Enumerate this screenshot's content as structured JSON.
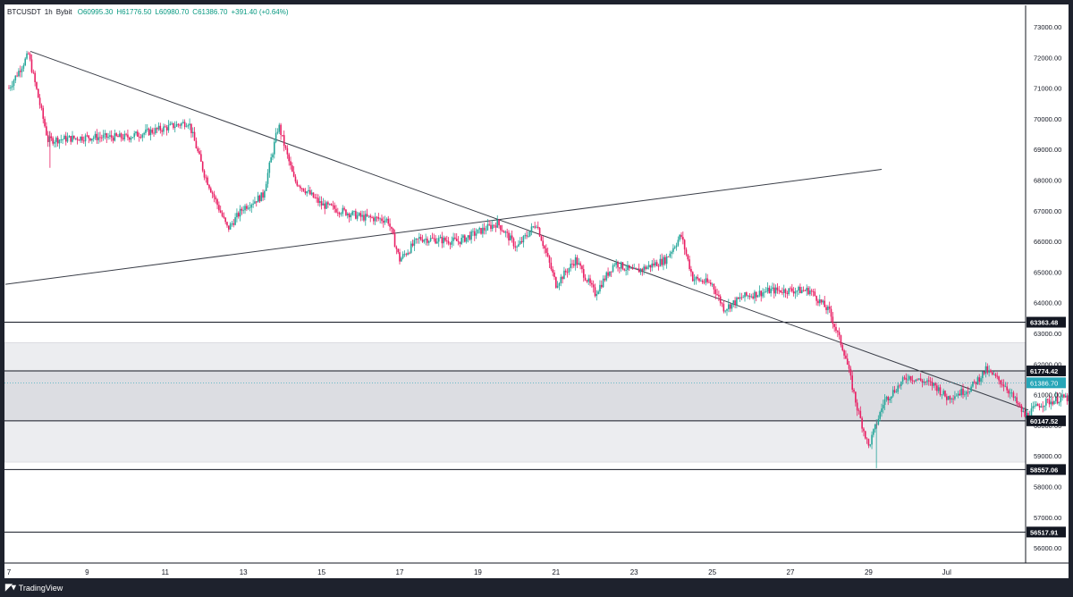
{
  "header": {
    "symbol": "BTCUSDT",
    "interval": "1h",
    "exchange": "Bybit",
    "open": "O60995.30",
    "high": "H61776.50",
    "low": "L60980.70",
    "close": "C61386.70",
    "change": "+391.40 (+0.64%)"
  },
  "footer": {
    "brand": "TradingView"
  },
  "colors": {
    "up": "#26a69a",
    "down": "#e91e63",
    "line": "#131722",
    "zone_light": "#ecedf0",
    "zone_dark": "#dcdde2",
    "price_tag": "#26a6b8"
  },
  "chart_data": {
    "type": "candlestick",
    "yaxis": {
      "min": 55500,
      "max": 73500,
      "ticks": [
        "73000.00",
        "72000.00",
        "71000.00",
        "70000.00",
        "69000.00",
        "68000.00",
        "67000.00",
        "66000.00",
        "65000.00",
        "64000.00",
        "63000.00",
        "62000.00",
        "61000.00",
        "60000.00",
        "59000.00",
        "58000.00",
        "57000.00",
        "56000.00"
      ]
    },
    "xaxis": {
      "ticks": [
        "7",
        "9",
        "11",
        "13",
        "15",
        "17",
        "19",
        "21",
        "23",
        "25",
        "27",
        "29",
        "Jul"
      ]
    },
    "level_labels": [
      {
        "value": 63363.48,
        "label": "63363.48"
      },
      {
        "value": 61774.42,
        "label": "61774.42"
      },
      {
        "value": 60147.52,
        "label": "60147.52"
      },
      {
        "value": 58557.06,
        "label": "58557.06"
      },
      {
        "value": 56517.91,
        "label": "56517.91"
      }
    ],
    "last_price": {
      "value": 61386.7,
      "label": "61386.70"
    },
    "zones": [
      {
        "from": 58800,
        "to": 62700,
        "shade": "light"
      },
      {
        "from": 60147.52,
        "to": 61774.42,
        "shade": "dark"
      }
    ],
    "trendlines": [
      {
        "from": {
          "date": "Jun 7",
          "price": 72200
        },
        "to": {
          "date": "Jul 1",
          "price": 60500
        }
      },
      {
        "from": {
          "date": "Jun 6",
          "price": 64600
        },
        "to": {
          "date": "Jun 30",
          "price": 68350
        }
      }
    ],
    "path_waypoints": [
      {
        "day": 0,
        "price": 71000
      },
      {
        "day": 0.5,
        "price": 72100
      },
      {
        "day": 1.0,
        "price": 69300
      },
      {
        "day": 2.0,
        "price": 69400
      },
      {
        "day": 3.0,
        "price": 69400
      },
      {
        "day": 4.0,
        "price": 69700
      },
      {
        "day": 4.6,
        "price": 69900
      },
      {
        "day": 5.0,
        "price": 68200
      },
      {
        "day": 5.6,
        "price": 66400
      },
      {
        "day": 6.0,
        "price": 67100
      },
      {
        "day": 6.5,
        "price": 67500
      },
      {
        "day": 6.9,
        "price": 69800
      },
      {
        "day": 7.3,
        "price": 68000
      },
      {
        "day": 8.0,
        "price": 67200
      },
      {
        "day": 9.0,
        "price": 66800
      },
      {
        "day": 9.7,
        "price": 66700
      },
      {
        "day": 10.0,
        "price": 65400
      },
      {
        "day": 10.5,
        "price": 66100
      },
      {
        "day": 11.5,
        "price": 66000
      },
      {
        "day": 12.5,
        "price": 66600
      },
      {
        "day": 13.0,
        "price": 65800
      },
      {
        "day": 13.5,
        "price": 66600
      },
      {
        "day": 14.0,
        "price": 64600
      },
      {
        "day": 14.5,
        "price": 65400
      },
      {
        "day": 15.0,
        "price": 64300
      },
      {
        "day": 15.5,
        "price": 65300
      },
      {
        "day": 16.0,
        "price": 65000
      },
      {
        "day": 16.8,
        "price": 65400
      },
      {
        "day": 17.2,
        "price": 66200
      },
      {
        "day": 17.5,
        "price": 64800
      },
      {
        "day": 18.0,
        "price": 64600
      },
      {
        "day": 18.3,
        "price": 63800
      },
      {
        "day": 18.8,
        "price": 64200
      },
      {
        "day": 19.5,
        "price": 64400
      },
      {
        "day": 20.5,
        "price": 64400
      },
      {
        "day": 21.0,
        "price": 63700
      },
      {
        "day": 21.4,
        "price": 62300
      },
      {
        "day": 21.7,
        "price": 60600
      },
      {
        "day": 22.0,
        "price": 59300
      },
      {
        "day": 22.4,
        "price": 60800
      },
      {
        "day": 23.0,
        "price": 61600
      },
      {
        "day": 23.7,
        "price": 61300
      },
      {
        "day": 24.0,
        "price": 60900
      },
      {
        "day": 24.6,
        "price": 61200
      },
      {
        "day": 25.0,
        "price": 61800
      },
      {
        "day": 25.5,
        "price": 61300
      },
      {
        "day": 26.0,
        "price": 60300
      },
      {
        "day": 26.4,
        "price": 60700
      },
      {
        "day": 27.0,
        "price": 60900
      },
      {
        "day": 27.5,
        "price": 60800
      },
      {
        "day": 27.7,
        "price": 61400
      }
    ]
  }
}
